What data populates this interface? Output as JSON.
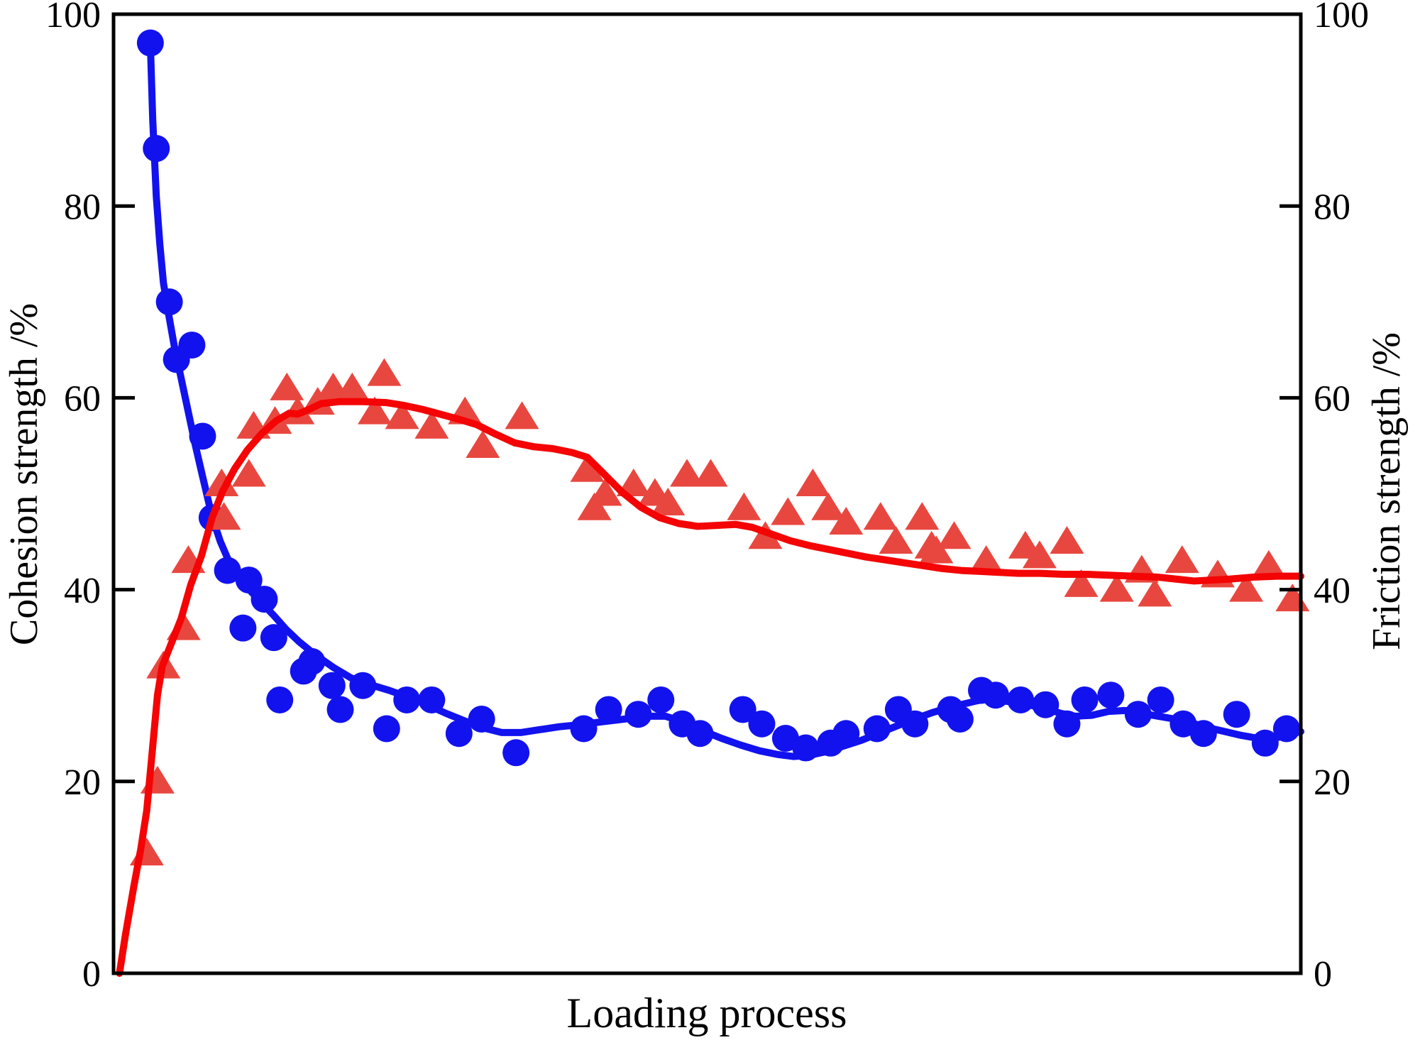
{
  "figure": {
    "x_axis_label": "Loading process",
    "left_axis_label": "Cohesion strength /%",
    "right_axis_label": "Friction strength /%"
  },
  "axes": {
    "left_ticks": [
      0,
      20,
      40,
      60,
      80,
      100
    ],
    "right_ticks": [
      0,
      20,
      40,
      60,
      80,
      100
    ],
    "y_range": [
      0,
      100
    ],
    "x_range": [
      0,
      100
    ],
    "grid": "off",
    "legend": "none"
  },
  "colors": {
    "cohesion_blue": "#1212ef",
    "friction_line_red": "#f40404",
    "friction_marker_red": "#e8473f",
    "axis_black": "#000000"
  },
  "chart_data": {
    "type": "scatter",
    "title": "",
    "xlabel": "Loading process",
    "ylabel_left": "Cohesion strength /%",
    "ylabel_right": "Friction strength /%",
    "ylim": [
      0,
      100
    ],
    "xlim": [
      0,
      100
    ],
    "x_note": "x axis has no tick labels; values are percent of loading process",
    "series": [
      {
        "name": "Cohesion strength",
        "axis": "left",
        "marker": "circle",
        "points": [
          [
            3.1,
            97
          ],
          [
            3.6,
            86
          ],
          [
            4.7,
            70
          ],
          [
            5.3,
            64
          ],
          [
            6.6,
            65.5
          ],
          [
            7.5,
            56
          ],
          [
            8.3,
            47.5
          ],
          [
            9.6,
            42
          ],
          [
            10.9,
            36
          ],
          [
            11.4,
            41
          ],
          [
            12.7,
            39
          ],
          [
            13.5,
            35
          ],
          [
            14,
            28.5
          ],
          [
            16,
            31.5
          ],
          [
            16.7,
            32.5
          ],
          [
            18.4,
            30
          ],
          [
            19.1,
            27.5
          ],
          [
            21,
            30
          ],
          [
            23,
            25.5
          ],
          [
            24.7,
            28.5
          ],
          [
            26.8,
            28.5
          ],
          [
            29.1,
            25
          ],
          [
            31,
            26.5
          ],
          [
            33.9,
            23
          ],
          [
            39.6,
            25.5
          ],
          [
            41.7,
            27.5
          ],
          [
            44.2,
            27
          ],
          [
            46.1,
            28.5
          ],
          [
            47.9,
            26
          ],
          [
            49.4,
            25
          ],
          [
            53,
            27.5
          ],
          [
            54.6,
            26
          ],
          [
            56.6,
            24.5
          ],
          [
            58.3,
            23.5
          ],
          [
            60.4,
            24
          ],
          [
            61.7,
            25
          ],
          [
            64.3,
            25.5
          ],
          [
            66.1,
            27.5
          ],
          [
            67.5,
            26
          ],
          [
            70.5,
            27.5
          ],
          [
            71.3,
            26.5
          ],
          [
            73.1,
            29.5
          ],
          [
            74.3,
            29
          ],
          [
            76.4,
            28.5
          ],
          [
            78.5,
            28
          ],
          [
            80.3,
            26
          ],
          [
            81.8,
            28.5
          ],
          [
            84,
            29
          ],
          [
            86.3,
            27
          ],
          [
            88.2,
            28.5
          ],
          [
            90.1,
            26
          ],
          [
            91.8,
            25
          ],
          [
            94.6,
            27
          ],
          [
            97,
            24
          ],
          [
            98.8,
            25.5
          ]
        ],
        "trend": [
          [
            3.1,
            97
          ],
          [
            3.3,
            89
          ],
          [
            3.6,
            81
          ],
          [
            3.9,
            76
          ],
          [
            4.2,
            72
          ],
          [
            4.6,
            69
          ],
          [
            5.1,
            65.5
          ],
          [
            5.7,
            62
          ],
          [
            6.3,
            58.5
          ],
          [
            6.9,
            55
          ],
          [
            7.5,
            51.8
          ],
          [
            8.3,
            47.6
          ],
          [
            9,
            45
          ],
          [
            9.7,
            43
          ],
          [
            10.5,
            41.3
          ],
          [
            11.5,
            39.9
          ],
          [
            12.5,
            38.6
          ],
          [
            13.5,
            37.3
          ],
          [
            14.5,
            35.9
          ],
          [
            15.6,
            34.6
          ],
          [
            17,
            33.2
          ],
          [
            18.5,
            31.9
          ],
          [
            20,
            30.8
          ],
          [
            21.6,
            30.1
          ],
          [
            23.2,
            29.5
          ],
          [
            24.8,
            28.8
          ],
          [
            26.4,
            28
          ],
          [
            28,
            27.1
          ],
          [
            29.6,
            26.3
          ],
          [
            31.1,
            25.6
          ],
          [
            32.7,
            25.1
          ],
          [
            34.3,
            25.1
          ],
          [
            35.9,
            25.4
          ],
          [
            37.5,
            25.7
          ],
          [
            39.1,
            25.9
          ],
          [
            41,
            26.2
          ],
          [
            43,
            26.5
          ],
          [
            45,
            26.8
          ],
          [
            46.5,
            26.8
          ],
          [
            48,
            26.2
          ],
          [
            49.6,
            25.3
          ],
          [
            51.2,
            24.5
          ],
          [
            52.8,
            23.8
          ],
          [
            54.4,
            23.2
          ],
          [
            56,
            22.8
          ],
          [
            57.3,
            22.6
          ],
          [
            58.5,
            22.7
          ],
          [
            60,
            23.1
          ],
          [
            61.5,
            23.7
          ],
          [
            63,
            24.3
          ],
          [
            65,
            25.3
          ],
          [
            67,
            26.3
          ],
          [
            69,
            27.2
          ],
          [
            71,
            27.9
          ],
          [
            72.7,
            28.4
          ],
          [
            73.6,
            28.6
          ],
          [
            75,
            28.4
          ],
          [
            76.6,
            28.1
          ],
          [
            78.2,
            27.7
          ],
          [
            79.8,
            27.1
          ],
          [
            81,
            26.8
          ],
          [
            82.4,
            26.9
          ],
          [
            83.8,
            27.3
          ],
          [
            85.2,
            27.4
          ],
          [
            86.6,
            27.1
          ],
          [
            88,
            26.8
          ],
          [
            89.4,
            26.5
          ],
          [
            90.8,
            26.1
          ],
          [
            92.2,
            25.6
          ],
          [
            93.6,
            25.2
          ],
          [
            95,
            24.8
          ],
          [
            96.4,
            24.5
          ],
          [
            97.8,
            24.5
          ],
          [
            99,
            24.9
          ],
          [
            100,
            25.2
          ]
        ]
      },
      {
        "name": "Friction strength",
        "axis": "right",
        "marker": "triangle",
        "points": [
          [
            2.8,
            12.5
          ],
          [
            3.7,
            20
          ],
          [
            4.2,
            32
          ],
          [
            5.9,
            36
          ],
          [
            6.3,
            43
          ],
          [
            9.1,
            51
          ],
          [
            9.3,
            47.5
          ],
          [
            11.4,
            52
          ],
          [
            11.8,
            57
          ],
          [
            13.6,
            57.5
          ],
          [
            14.6,
            61
          ],
          [
            15.5,
            58.5
          ],
          [
            17.2,
            59.5
          ],
          [
            18.5,
            61
          ],
          [
            20.1,
            61
          ],
          [
            22,
            58.5
          ],
          [
            22.8,
            62.5
          ],
          [
            24.3,
            58
          ],
          [
            26.8,
            57
          ],
          [
            29.6,
            58.5
          ],
          [
            31.1,
            55
          ],
          [
            34.4,
            58
          ],
          [
            39.9,
            52.5
          ],
          [
            40.5,
            48.5
          ],
          [
            41.4,
            50
          ],
          [
            43.8,
            51
          ],
          [
            45.6,
            50
          ],
          [
            46.7,
            49
          ],
          [
            48.3,
            52
          ],
          [
            50.3,
            52
          ],
          [
            53.1,
            48.5
          ],
          [
            54.9,
            45.5
          ],
          [
            56.8,
            48
          ],
          [
            58.9,
            51
          ],
          [
            60.2,
            48.5
          ],
          [
            61.7,
            47
          ],
          [
            64.6,
            47.5
          ],
          [
            65.9,
            45
          ],
          [
            68.1,
            47.5
          ],
          [
            68.9,
            44.5
          ],
          [
            69.3,
            44
          ],
          [
            70.8,
            45.5
          ],
          [
            73.5,
            43
          ],
          [
            76.8,
            44.5
          ],
          [
            78,
            43.5
          ],
          [
            80.3,
            45
          ],
          [
            81.5,
            40.5
          ],
          [
            84.5,
            40
          ],
          [
            86.6,
            42
          ],
          [
            87.7,
            39.5
          ],
          [
            90,
            43
          ],
          [
            93,
            41.5
          ],
          [
            95.4,
            40
          ],
          [
            97.3,
            42.5
          ],
          [
            99.3,
            39
          ]
        ],
        "trend": [
          [
            0.5,
            0
          ],
          [
            1,
            4
          ],
          [
            1.7,
            9
          ],
          [
            2.3,
            13
          ],
          [
            2.8,
            17
          ],
          [
            3.1,
            21
          ],
          [
            3.4,
            25
          ],
          [
            3.7,
            29
          ],
          [
            4.1,
            32
          ],
          [
            4.9,
            34.5
          ],
          [
            5.7,
            37
          ],
          [
            6.5,
            40.5
          ],
          [
            7.4,
            43.5
          ],
          [
            8.3,
            47.5
          ],
          [
            9.2,
            50.3
          ],
          [
            10.2,
            52.6
          ],
          [
            11.3,
            54.6
          ],
          [
            12.5,
            56.3
          ],
          [
            13.7,
            57.6
          ],
          [
            14.8,
            58.4
          ],
          [
            15.5,
            58.3
          ],
          [
            16.3,
            58.7
          ],
          [
            17.5,
            59.4
          ],
          [
            19,
            59.6
          ],
          [
            21,
            59.6
          ],
          [
            23,
            59.5
          ],
          [
            24.5,
            59.2
          ],
          [
            26,
            58.8
          ],
          [
            27.5,
            58.3
          ],
          [
            29,
            57.8
          ],
          [
            30.6,
            57.2
          ],
          [
            32.2,
            56.2
          ],
          [
            33.8,
            55.3
          ],
          [
            35.4,
            54.9
          ],
          [
            37,
            54.7
          ],
          [
            38.6,
            54.3
          ],
          [
            39.9,
            53.8
          ],
          [
            41.2,
            52.2
          ],
          [
            42.8,
            50.2
          ],
          [
            44.4,
            48.6
          ],
          [
            46,
            47.5
          ],
          [
            47.6,
            46.9
          ],
          [
            49.2,
            46.6
          ],
          [
            50.8,
            46.7
          ],
          [
            52.4,
            46.8
          ],
          [
            53.8,
            46.5
          ],
          [
            55.4,
            45.8
          ],
          [
            57,
            45.1
          ],
          [
            58.6,
            44.6
          ],
          [
            60.2,
            44.2
          ],
          [
            61.8,
            43.8
          ],
          [
            63.4,
            43.4
          ],
          [
            65,
            43.1
          ],
          [
            66.6,
            42.8
          ],
          [
            68.2,
            42.5
          ],
          [
            69.8,
            42.2
          ],
          [
            71.4,
            42
          ],
          [
            73,
            41.9
          ],
          [
            74.6,
            41.8
          ],
          [
            76.2,
            41.7
          ],
          [
            78,
            41.7
          ],
          [
            80,
            41.6
          ],
          [
            82,
            41.6
          ],
          [
            84,
            41.5
          ],
          [
            86,
            41.4
          ],
          [
            88,
            41.3
          ],
          [
            89.5,
            41.1
          ],
          [
            91,
            40.9
          ],
          [
            92.5,
            41
          ],
          [
            94,
            41.1
          ],
          [
            96,
            41.3
          ],
          [
            98,
            41.4
          ],
          [
            100,
            41.4
          ]
        ]
      }
    ]
  }
}
